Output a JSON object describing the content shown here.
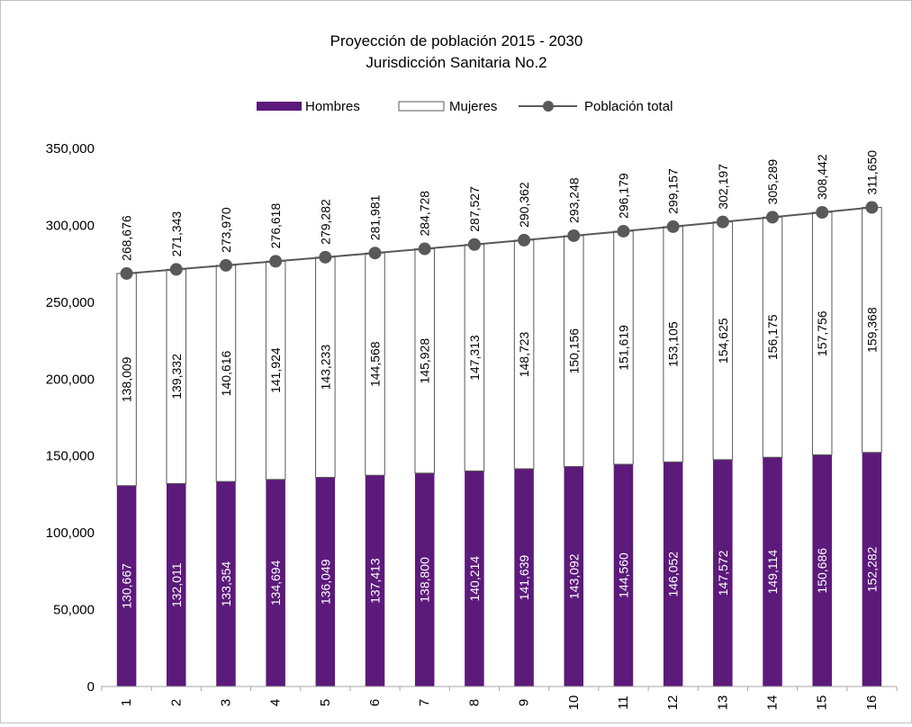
{
  "chart_data": {
    "type": "bar",
    "stacked": true,
    "title": "Proyección de población 2015 - 2030",
    "subtitle": "Jurisdicción Sanitaria No.2",
    "categories": [
      "1",
      "2",
      "3",
      "4",
      "5",
      "6",
      "7",
      "8",
      "9",
      "10",
      "11",
      "12",
      "13",
      "14",
      "15",
      "16"
    ],
    "series": [
      {
        "name": "Hombres",
        "type": "bar",
        "color": "#5c1a7a",
        "values": [
          130667,
          132011,
          133354,
          134694,
          136049,
          137413,
          138800,
          140214,
          141639,
          143092,
          144560,
          146052,
          147572,
          149114,
          150686,
          152282
        ],
        "labels": [
          "130,667",
          "132,011",
          "133,354",
          "134,694",
          "136,049",
          "137,413",
          "138,800",
          "140,214",
          "141,639",
          "143,092",
          "144,560",
          "146,052",
          "147,572",
          "149,114",
          "150,686",
          "152,282"
        ]
      },
      {
        "name": "Mujeres",
        "type": "bar",
        "color": "#ffffff",
        "values": [
          138009,
          139332,
          140616,
          141924,
          143233,
          144568,
          145928,
          147313,
          148723,
          150156,
          151619,
          153105,
          154625,
          156175,
          157756,
          159368
        ],
        "labels": [
          "138,009",
          "139,332",
          "140,616",
          "141,924",
          "143,233",
          "144,568",
          "145,928",
          "147,313",
          "148,723",
          "150,156",
          "151,619",
          "153,105",
          "154,625",
          "156,175",
          "157,756",
          "159,368"
        ]
      },
      {
        "name": "Población total",
        "type": "line",
        "color": "#595959",
        "values": [
          268676,
          271343,
          273970,
          276618,
          279282,
          281981,
          284728,
          287527,
          290362,
          293248,
          296179,
          299157,
          302197,
          305289,
          308442,
          311650
        ],
        "labels": [
          "268,676",
          "271,343",
          "273,970",
          "276,618",
          "279,282",
          "281,981",
          "284,728",
          "287,527",
          "290,362",
          "293,248",
          "296,179",
          "299,157",
          "302,197",
          "305,289",
          "308,442",
          "311,650"
        ]
      }
    ],
    "ylim": [
      0,
      350000
    ],
    "yticks": [
      0,
      50000,
      100000,
      150000,
      200000,
      250000,
      300000,
      350000
    ],
    "ytick_labels": [
      "0",
      "50,000",
      "100,000",
      "150,000",
      "200,000",
      "250,000",
      "300,000",
      "350,000"
    ],
    "xlabel": "",
    "ylabel": "",
    "grid": false,
    "legend_position": "top"
  }
}
